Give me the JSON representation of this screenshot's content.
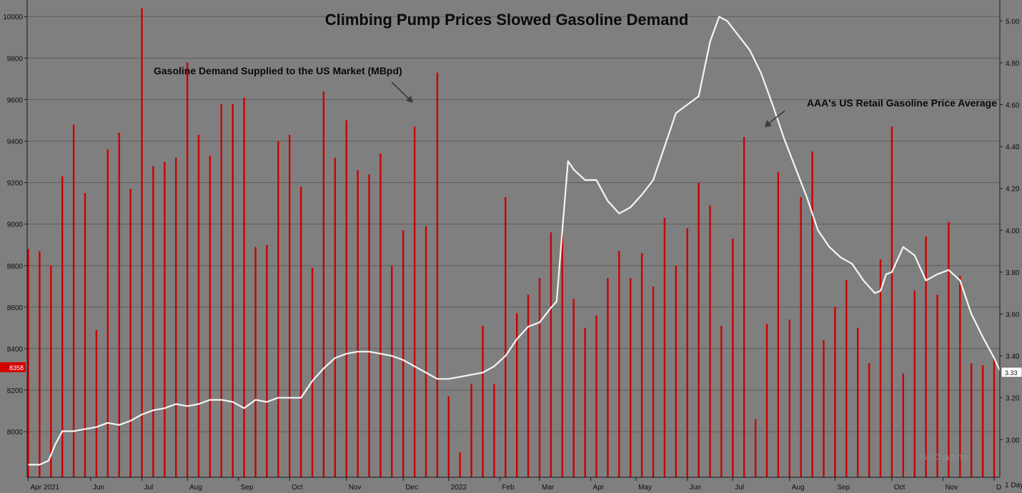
{
  "chart_data": {
    "type": "bar+line",
    "title": "Climbing Pump Prices Slowed Gasoline Demand",
    "x_tick_labels": [
      "Apr 2021",
      "Jun",
      "Jul",
      "Aug",
      "Sep",
      "Oct",
      "Nov",
      "Dec",
      "2022",
      "Feb",
      "Mar",
      "Apr",
      "May",
      "Jun",
      "Jul",
      "Aug",
      "Sep",
      "Oct",
      "Nov",
      "Dec"
    ],
    "timeframe_label": "1 Day",
    "grid": true,
    "left_axis": {
      "ylim": [
        7780,
        10080
      ],
      "ticks": [
        8000,
        8200,
        8400,
        8600,
        8800,
        9000,
        9200,
        9400,
        9600,
        9800,
        10000
      ]
    },
    "right_axis": {
      "ylim": [
        2.82,
        5.1
      ],
      "ticks": [
        "3.00",
        "3.20",
        "3.40",
        "3.60",
        "3.80",
        "4.00",
        "4.20",
        "4.40",
        "4.60",
        "4.80",
        "5.00"
      ]
    },
    "series": [
      {
        "name": "Gasoline Demand Supplied to the US Market (MBpd)",
        "type": "bar",
        "axis": "left",
        "color": "#cc0000",
        "values": [
          8880,
          8870,
          8800,
          9230,
          9480,
          9150,
          8490,
          9360,
          9440,
          9170,
          10040,
          9280,
          9300,
          9320,
          9780,
          9430,
          9330,
          9580,
          9580,
          9610,
          8890,
          8900,
          9400,
          9430,
          9180,
          8790,
          9640,
          9320,
          9500,
          9260,
          9240,
          9340,
          8800,
          8970,
          9470,
          8990,
          9730,
          8170,
          7900,
          8230,
          8510,
          8230,
          9130,
          8570,
          8660,
          8740,
          8960,
          8950,
          8640,
          8500,
          8560,
          8740,
          8870,
          8740,
          8860,
          8700,
          9030,
          8800,
          8980,
          9200,
          9090,
          8510,
          8930,
          9420,
          8060,
          8520,
          9250,
          8540,
          9130,
          9350,
          8440,
          8600,
          8730,
          8500,
          8330,
          8830,
          9470,
          8280,
          8680,
          8940,
          8660,
          9010,
          8750,
          8330,
          8320,
          8360
        ]
      },
      {
        "name": "AAA's US Retail Gasoline Price Average",
        "type": "line",
        "axis": "right",
        "color": "#f5f5f5",
        "x_index": [
          0,
          1,
          1.8,
          2.4,
          3.0,
          3.5,
          4.0,
          5.0,
          6.0,
          7.0,
          8.0,
          9.0,
          10.0,
          11.0,
          12.0,
          13.0,
          14.0,
          15.0,
          16.0,
          17.0,
          18.0,
          19.0,
          20.0,
          21.0,
          22.0,
          23.0,
          24.0,
          25.0,
          26.0,
          27.0,
          28.0,
          29.0,
          30.0,
          31.0,
          32.0,
          33.0,
          34.0,
          35.0,
          36.0,
          37.0,
          38.0,
          39.0,
          40.0,
          41.0,
          42.0,
          43.0,
          44.0,
          45.0,
          46.0,
          46.5,
          47.0,
          47.5,
          48.0,
          49.0,
          50.0,
          51.0,
          52.0,
          53.0,
          54.0,
          55.0,
          56.0,
          57.0,
          58.0,
          59.0,
          60.0,
          60.8,
          61.5,
          62.5,
          63.5,
          64.5,
          65.5,
          66.5,
          67.5,
          68.5,
          69.5,
          70.5,
          71.5,
          72.5,
          73.5,
          74.5,
          75.0,
          75.5,
          76.0,
          77.0,
          78.0,
          79.0,
          80.0,
          81.0,
          82.0,
          83.0,
          84.0,
          85.0,
          85.5
        ],
        "values": [
          2.88,
          2.88,
          2.9,
          2.98,
          3.04,
          3.04,
          3.04,
          3.05,
          3.06,
          3.08,
          3.07,
          3.09,
          3.12,
          3.14,
          3.15,
          3.17,
          3.16,
          3.17,
          3.19,
          3.19,
          3.18,
          3.15,
          3.19,
          3.18,
          3.2,
          3.2,
          3.2,
          3.28,
          3.34,
          3.39,
          3.41,
          3.42,
          3.42,
          3.41,
          3.4,
          3.38,
          3.35,
          3.32,
          3.29,
          3.29,
          3.3,
          3.31,
          3.32,
          3.35,
          3.4,
          3.48,
          3.54,
          3.56,
          3.63,
          3.66,
          4.0,
          4.33,
          4.29,
          4.24,
          4.24,
          4.14,
          4.08,
          4.11,
          4.17,
          4.24,
          4.4,
          4.56,
          4.6,
          4.64,
          4.9,
          5.02,
          5.0,
          4.93,
          4.86,
          4.75,
          4.6,
          4.44,
          4.3,
          4.16,
          4.0,
          3.92,
          3.87,
          3.84,
          3.76,
          3.7,
          3.71,
          3.79,
          3.8,
          3.92,
          3.88,
          3.76,
          3.79,
          3.81,
          3.76,
          3.6,
          3.49,
          3.39,
          3.33
        ]
      }
    ],
    "annotations": [
      {
        "text": "Gasoline Demand Supplied to the US Market (MBpd)"
      },
      {
        "text": "AAA's US Retail Gasoline Price Average"
      }
    ],
    "last_value_badges": {
      "left": "8358",
      "right": "3.33"
    },
    "watermark": "GoCharting"
  }
}
